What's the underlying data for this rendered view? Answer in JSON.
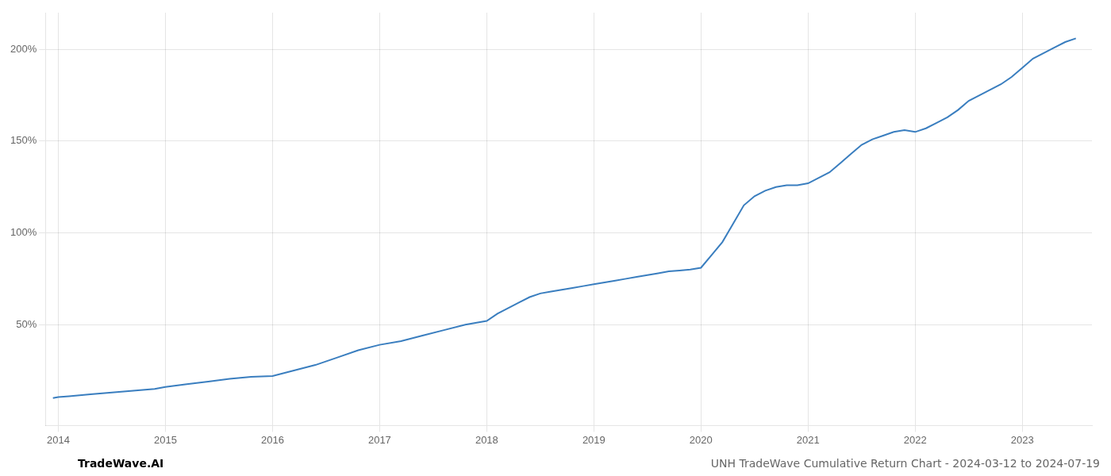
{
  "chart_data": {
    "type": "line",
    "title": "UNH TradeWave Cumulative Return Chart - 2024-03-12 to 2024-07-19",
    "annotations": [
      "TradeWave.AI"
    ],
    "x": [
      2013.95,
      2014.0,
      2014.1,
      2014.2,
      2014.3,
      2014.5,
      2014.7,
      2014.9,
      2015.0,
      2015.2,
      2015.4,
      2015.6,
      2015.8,
      2016.0,
      2016.2,
      2016.4,
      2016.6,
      2016.8,
      2017.0,
      2017.2,
      2017.4,
      2017.6,
      2017.8,
      2018.0,
      2018.1,
      2018.2,
      2018.3,
      2018.4,
      2018.5,
      2018.6,
      2018.7,
      2018.8,
      2018.9,
      2019.0,
      2019.1,
      2019.2,
      2019.3,
      2019.4,
      2019.5,
      2019.6,
      2019.7,
      2019.8,
      2019.9,
      2020.0,
      2020.1,
      2020.2,
      2020.3,
      2020.4,
      2020.5,
      2020.6,
      2020.7,
      2020.8,
      2020.9,
      2021.0,
      2021.1,
      2021.2,
      2021.3,
      2021.4,
      2021.5,
      2021.6,
      2021.7,
      2021.8,
      2021.9,
      2022.0,
      2022.1,
      2022.2,
      2022.3,
      2022.4,
      2022.5,
      2022.6,
      2022.7,
      2022.8,
      2022.9,
      2023.0,
      2023.1,
      2023.2,
      2023.3,
      2023.4,
      2023.5
    ],
    "values": [
      10,
      10.5,
      11,
      11.5,
      12,
      13,
      14,
      15,
      16,
      17.5,
      19,
      20.5,
      21.5,
      22,
      25,
      28,
      32,
      36,
      39,
      41,
      44,
      47,
      50,
      52,
      56,
      59,
      62,
      65,
      67,
      68,
      69,
      70,
      71,
      72,
      73,
      74,
      75,
      76,
      77,
      78,
      79,
      79.5,
      80,
      81,
      88,
      95,
      105,
      115,
      120,
      123,
      125,
      126,
      126,
      127,
      130,
      133,
      138,
      143,
      148,
      151,
      153,
      155,
      156,
      155,
      157,
      160,
      163,
      167,
      172,
      175,
      178,
      181,
      185,
      190,
      195,
      198,
      201,
      204,
      206
    ],
    "color": "#3a7ebf",
    "xlim": [
      2013.88,
      2023.65
    ],
    "ylim": [
      -5,
      220
    ],
    "xticks": [
      2014,
      2015,
      2016,
      2017,
      2018,
      2019,
      2020,
      2021,
      2022,
      2023
    ],
    "yticks": [
      {
        "value": 50,
        "label": "50%"
      },
      {
        "value": 100,
        "label": "100%"
      },
      {
        "value": 150,
        "label": "150%"
      },
      {
        "value": 200,
        "label": "200%"
      }
    ],
    "grid": true
  }
}
